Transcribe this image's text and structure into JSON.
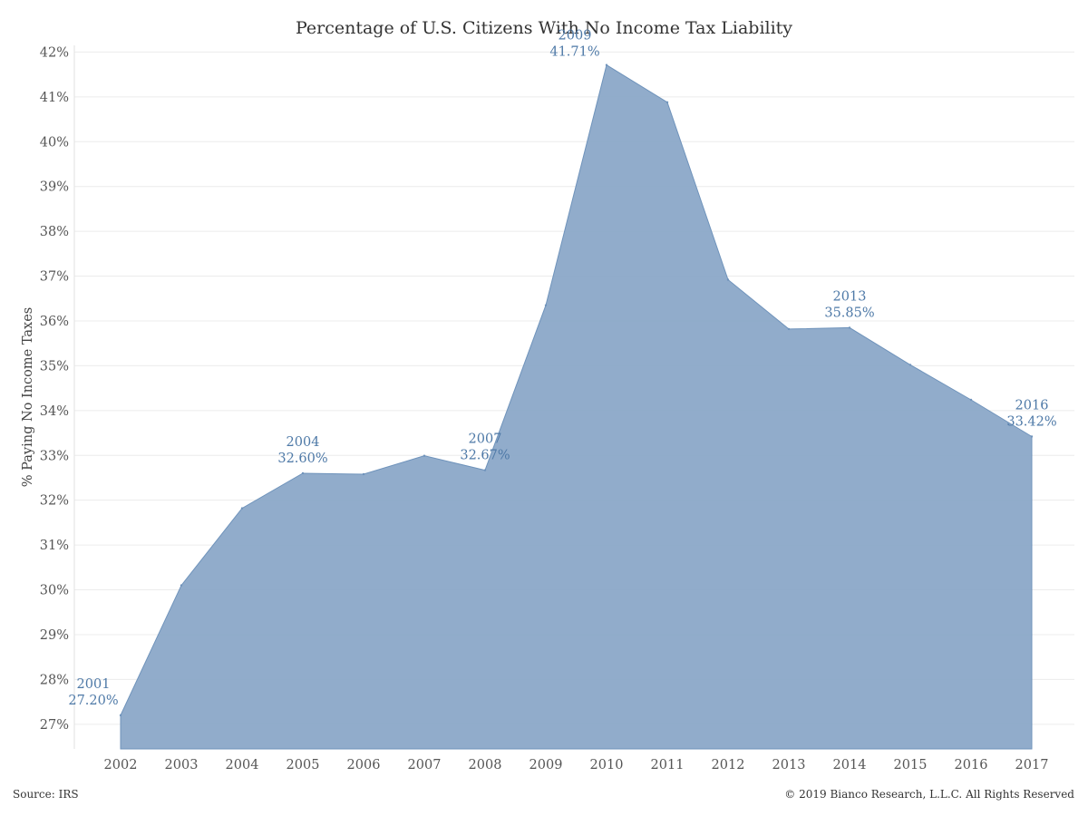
{
  "chart_data": {
    "type": "area",
    "title": "Percentage of U.S. Citizens With No Income Tax Liability",
    "xlabel": "",
    "ylabel": "% Paying No Income Taxes",
    "categories": [
      "2002",
      "2003",
      "2004",
      "2005",
      "2006",
      "2007",
      "2008",
      "2009",
      "2010",
      "2011",
      "2012",
      "2013",
      "2014",
      "2015",
      "2016",
      "2017"
    ],
    "yticks": [
      "27%",
      "28%",
      "29%",
      "30%",
      "31%",
      "32%",
      "33%",
      "34%",
      "35%",
      "36%",
      "37%",
      "38%",
      "39%",
      "40%",
      "41%",
      "42%"
    ],
    "ylim": [
      26.45,
      42.15
    ],
    "grid": true,
    "color": "#8ba8c8",
    "line_color": "#6f93bb",
    "series": [
      {
        "values": [
          27.2,
          30.1,
          31.82,
          32.6,
          32.58,
          32.99,
          32.67,
          36.35,
          41.71,
          40.88,
          36.92,
          35.82,
          35.85,
          35.02,
          34.24,
          33.42
        ]
      }
    ],
    "annotations": [
      {
        "index": 0,
        "year": "2001",
        "value": "27.20%"
      },
      {
        "index": 3,
        "year": "2004",
        "value": "32.60%"
      },
      {
        "index": 6,
        "year": "2007",
        "value": "32.67%"
      },
      {
        "index": 8,
        "year": "2009",
        "value": "41.71%"
      },
      {
        "index": 12,
        "year": "2013",
        "value": "35.85%"
      },
      {
        "index": 15,
        "year": "2016",
        "value": "33.42%"
      }
    ]
  },
  "footer": {
    "source": "Source: IRS",
    "copyright": "© 2019 Bianco Research, L.L.C. All Rights Reserved"
  }
}
